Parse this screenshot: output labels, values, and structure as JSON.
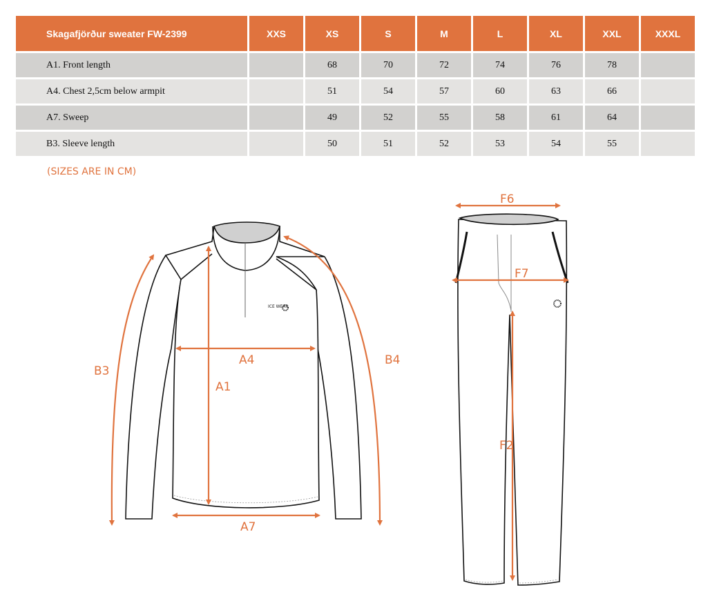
{
  "table": {
    "title": "Skagafjörður sweater FW-2399",
    "sizes": [
      "XXS",
      "XS",
      "S",
      "M",
      "L",
      "XL",
      "XXL",
      "XXXL"
    ],
    "rows": [
      {
        "label": "A1. Front length",
        "values": [
          "",
          "68",
          "70",
          "72",
          "74",
          "76",
          "78",
          ""
        ]
      },
      {
        "label": "A4. Chest 2,5cm below armpit",
        "values": [
          "",
          "51",
          "54",
          "57",
          "60",
          "63",
          "66",
          ""
        ]
      },
      {
        "label": "A7. Sweep",
        "values": [
          "",
          "49",
          "52",
          "55",
          "58",
          "61",
          "64",
          ""
        ]
      },
      {
        "label": "B3. Sleeve length",
        "values": [
          "",
          "50",
          "51",
          "52",
          "53",
          "54",
          "55",
          ""
        ]
      }
    ]
  },
  "note": "(SIZES ARE IN CM)",
  "diagram": {
    "accent": "#E0733E",
    "sweater_labels": {
      "a1": "A1",
      "a4": "A4",
      "a7": "A7",
      "b3": "B3",
      "b4": "B4"
    },
    "logo": "ICE WEAR",
    "pants_labels": {
      "f6": "F6",
      "f7": "F7",
      "f2": "F2"
    }
  }
}
